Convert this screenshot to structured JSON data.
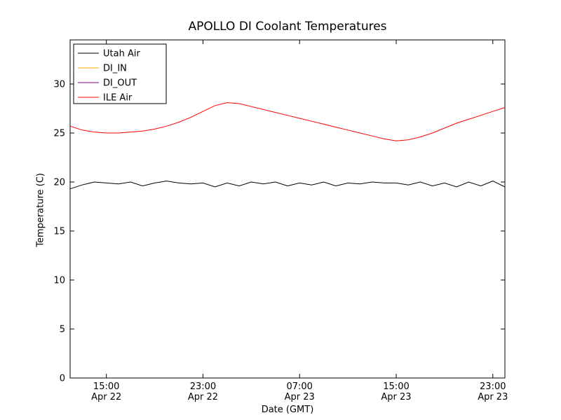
{
  "figure": {
    "background": "#ffffff",
    "axes_edge_color": "#000000"
  },
  "chart_data": {
    "type": "line",
    "title": "APOLLO DI Coolant Temperatures",
    "xlabel": "Date (GMT)",
    "ylabel": "Temperature (C)",
    "x_unit": "hours since Apr 22 12:00 GMT",
    "xlim": [
      0,
      36
    ],
    "ylim": [
      0,
      34.5
    ],
    "yticks": [
      0,
      5,
      10,
      15,
      20,
      25,
      30
    ],
    "xticks": {
      "positions": [
        3,
        11,
        19,
        27,
        35
      ],
      "time_labels": [
        "15:00",
        "23:00",
        "07:00",
        "15:00",
        "23:00"
      ],
      "date_labels": [
        "Apr 22",
        "Apr 22",
        "Apr 23",
        "Apr 23",
        "Apr 23"
      ]
    },
    "grid": false,
    "legend_position": "upper-left",
    "series": [
      {
        "name": "Utah Air",
        "color": "#000000",
        "x": [
          0,
          1,
          2,
          3,
          4,
          5,
          6,
          7,
          8,
          9,
          10,
          11,
          12,
          13,
          14,
          15,
          16,
          17,
          18,
          19,
          20,
          21,
          22,
          23,
          24,
          25,
          26,
          27,
          28,
          29,
          30,
          31,
          32,
          33,
          34,
          35,
          36
        ],
        "values": [
          19.3,
          19.7,
          20.0,
          19.9,
          19.8,
          20.0,
          19.6,
          19.9,
          20.1,
          19.9,
          19.8,
          19.9,
          19.5,
          19.9,
          19.6,
          20.0,
          19.8,
          20.0,
          19.6,
          19.9,
          19.7,
          20.0,
          19.6,
          19.9,
          19.8,
          20.0,
          19.9,
          19.9,
          19.7,
          20.0,
          19.6,
          19.9,
          19.5,
          20.0,
          19.6,
          20.1,
          19.5
        ]
      },
      {
        "name": "DI_IN",
        "color": "#ffa500",
        "x": [],
        "values": []
      },
      {
        "name": "DI_OUT",
        "color": "#800080",
        "x": [],
        "values": []
      },
      {
        "name": "ILE Air",
        "color": "#ff0000",
        "x": [
          0,
          1,
          2,
          3,
          4,
          5,
          6,
          7,
          8,
          9,
          10,
          11,
          12,
          13,
          14,
          15,
          16,
          17,
          18,
          19,
          20,
          21,
          22,
          23,
          24,
          25,
          26,
          27,
          28,
          29,
          30,
          31,
          32,
          33,
          34,
          35,
          36
        ],
        "values": [
          25.7,
          25.3,
          25.1,
          25.0,
          25.0,
          25.1,
          25.2,
          25.4,
          25.7,
          26.1,
          26.6,
          27.2,
          27.8,
          28.1,
          28.0,
          27.7,
          27.4,
          27.1,
          26.8,
          26.5,
          26.2,
          25.9,
          25.6,
          25.3,
          25.0,
          24.7,
          24.4,
          24.2,
          24.3,
          24.6,
          25.0,
          25.5,
          26.0,
          26.4,
          26.8,
          27.2,
          27.6
        ]
      }
    ]
  }
}
